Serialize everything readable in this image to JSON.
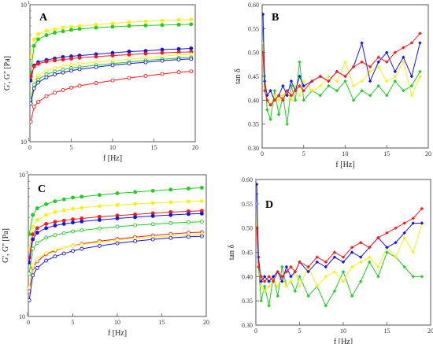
{
  "colors": {
    "red": "#ff1a1a",
    "blue": "#1414e6",
    "green": "#22cc22",
    "yellow": "#f2f21a",
    "frame": "#555555"
  },
  "chart_data": [
    {
      "panel": "A",
      "type": "scatter",
      "ylog": true,
      "xlabel": "f [Hz]",
      "ylabel": "G', G'' [Pa]",
      "xlim": [
        0,
        20
      ],
      "ylim": [
        100,
        1000
      ],
      "xticks": [
        0,
        5,
        10,
        15,
        20
      ],
      "yticks": [
        {
          "v": 100,
          "t": "10"
        },
        {
          "v": 1000,
          "t": "10"
        }
      ],
      "yexp": "1",
      "series": [
        {
          "color": "yellow",
          "filled": true,
          "x": [
            0.1,
            0.5,
            1,
            2,
            3,
            4,
            5,
            6,
            8,
            10,
            12,
            14,
            16,
            18,
            19.5
          ],
          "y": [
            420,
            560,
            610,
            645,
            660,
            680,
            690,
            700,
            715,
            730,
            745,
            755,
            765,
            775,
            780
          ]
        },
        {
          "color": "green",
          "filled": true,
          "x": [
            0.1,
            0.5,
            1,
            2,
            3,
            4,
            5,
            6,
            8,
            10,
            12,
            14,
            16,
            18,
            19.5
          ],
          "y": [
            320,
            500,
            560,
            600,
            625,
            640,
            655,
            665,
            680,
            690,
            700,
            705,
            710,
            715,
            720
          ]
        },
        {
          "color": "blue",
          "filled": true,
          "x": [
            0.1,
            0.5,
            1,
            2,
            3,
            4,
            5,
            6,
            8,
            10,
            12,
            14,
            16,
            18,
            19.5
          ],
          "y": [
            280,
            360,
            380,
            395,
            405,
            415,
            420,
            425,
            435,
            445,
            455,
            460,
            470,
            475,
            480
          ]
        },
        {
          "color": "red",
          "filled": true,
          "x": [
            0.1,
            0.5,
            1,
            2,
            3,
            4,
            5,
            6,
            8,
            10,
            12,
            14,
            16,
            18,
            19.5
          ],
          "y": [
            300,
            355,
            370,
            385,
            392,
            398,
            404,
            410,
            418,
            425,
            432,
            440,
            445,
            450,
            452
          ]
        },
        {
          "color": "yellow",
          "filled": false,
          "x": [
            0.1,
            0.5,
            1,
            2,
            3,
            4,
            5,
            6,
            8,
            10,
            12,
            14,
            16,
            18,
            19.5
          ],
          "y": [
            200,
            280,
            305,
            330,
            345,
            355,
            365,
            370,
            380,
            390,
            400,
            410,
            420,
            430,
            435
          ]
        },
        {
          "color": "green",
          "filled": false,
          "x": [
            0.1,
            0.5,
            1,
            2,
            3,
            4,
            5,
            6,
            8,
            10,
            12,
            14,
            16,
            18,
            19.5
          ],
          "y": [
            200,
            260,
            285,
            310,
            325,
            335,
            345,
            350,
            362,
            372,
            382,
            392,
            400,
            408,
            412
          ]
        },
        {
          "color": "blue",
          "filled": false,
          "x": [
            0.1,
            0.5,
            1,
            2,
            3,
            4,
            5,
            6,
            8,
            10,
            12,
            14,
            16,
            18,
            19.5
          ],
          "y": [
            190,
            245,
            270,
            295,
            310,
            320,
            330,
            338,
            350,
            362,
            372,
            380,
            390,
            398,
            402
          ]
        },
        {
          "color": "red",
          "filled": false,
          "x": [
            0.1,
            0.5,
            1,
            2,
            3,
            4,
            5,
            6,
            8,
            10,
            12,
            14,
            16,
            18,
            19.5
          ],
          "y": [
            140,
            180,
            195,
            215,
            228,
            238,
            248,
            256,
            268,
            280,
            292,
            302,
            312,
            322,
            326
          ]
        }
      ]
    },
    {
      "panel": "B",
      "type": "line",
      "xlabel": "f [Hz]",
      "ylabel": "tan δ",
      "xlim": [
        0,
        20
      ],
      "ylim": [
        0.3,
        0.6
      ],
      "xticks": [
        0,
        5,
        10,
        15,
        20
      ],
      "yticks": [
        0.3,
        0.35,
        0.4,
        0.45,
        0.5,
        0.55,
        0.6
      ],
      "series": [
        {
          "color": "green",
          "x": [
            0.1,
            0.3,
            0.6,
            1,
            1.5,
            2,
            2.5,
            3,
            3.5,
            4,
            4.5,
            5,
            6,
            7,
            8,
            9,
            10,
            11,
            12,
            13,
            14,
            15,
            16,
            17,
            18,
            19
          ],
          "y": [
            0.55,
            0.45,
            0.38,
            0.36,
            0.42,
            0.37,
            0.41,
            0.35,
            0.43,
            0.4,
            0.48,
            0.4,
            0.42,
            0.41,
            0.43,
            0.42,
            0.44,
            0.4,
            0.42,
            0.41,
            0.43,
            0.41,
            0.44,
            0.42,
            0.43,
            0.46
          ]
        },
        {
          "color": "yellow",
          "x": [
            0.1,
            0.3,
            0.6,
            1,
            1.5,
            2,
            2.5,
            3,
            3.5,
            4,
            4.5,
            5,
            6,
            7,
            8,
            9,
            10,
            11,
            12,
            13,
            14,
            15,
            16,
            17,
            18,
            19
          ],
          "y": [
            0.52,
            0.43,
            0.4,
            0.39,
            0.41,
            0.4,
            0.41,
            0.42,
            0.4,
            0.43,
            0.41,
            0.44,
            0.42,
            0.43,
            0.45,
            0.44,
            0.48,
            0.43,
            0.44,
            0.46,
            0.47,
            0.44,
            0.45,
            0.48,
            0.41,
            0.45
          ]
        },
        {
          "color": "blue",
          "x": [
            0.1,
            0.3,
            0.6,
            1,
            1.5,
            2,
            2.5,
            3,
            3.5,
            4,
            4.5,
            5,
            6,
            7,
            8,
            9,
            10,
            11,
            12,
            13,
            14,
            15,
            16,
            17,
            18,
            19
          ],
          "y": [
            0.58,
            0.44,
            0.41,
            0.42,
            0.4,
            0.41,
            0.43,
            0.41,
            0.44,
            0.42,
            0.45,
            0.43,
            0.44,
            0.45,
            0.44,
            0.46,
            0.45,
            0.47,
            0.52,
            0.44,
            0.48,
            0.5,
            0.46,
            0.49,
            0.45,
            0.52
          ]
        },
        {
          "color": "red",
          "x": [
            0.1,
            0.3,
            0.6,
            1,
            1.5,
            2,
            2.5,
            3,
            3.5,
            4,
            4.5,
            5,
            6,
            7,
            8,
            9,
            10,
            11,
            12,
            13,
            14,
            15,
            16,
            17,
            18,
            19
          ],
          "y": [
            0.5,
            0.42,
            0.4,
            0.39,
            0.4,
            0.41,
            0.4,
            0.42,
            0.41,
            0.42,
            0.43,
            0.42,
            0.44,
            0.45,
            0.44,
            0.46,
            0.45,
            0.47,
            0.48,
            0.47,
            0.49,
            0.48,
            0.5,
            0.51,
            0.52,
            0.54
          ]
        }
      ]
    },
    {
      "panel": "C",
      "type": "scatter",
      "ylog": true,
      "xlabel": "f [Hz]",
      "ylabel": "G', G'' [Pa]",
      "xlim": [
        0,
        20
      ],
      "ylim": [
        100,
        1000
      ],
      "xticks": [
        0,
        5,
        10,
        15,
        20
      ],
      "yticks": [
        {
          "v": 100,
          "t": "10"
        },
        {
          "v": 1000,
          "t": "10"
        }
      ],
      "yexp": "1",
      "series": [
        {
          "color": "green",
          "filled": true,
          "x": [
            0.1,
            0.5,
            1,
            2,
            3,
            4,
            5,
            6,
            8,
            10,
            12,
            14,
            16,
            18,
            19.5
          ],
          "y": [
            380,
            520,
            580,
            620,
            650,
            670,
            690,
            700,
            720,
            740,
            755,
            770,
            785,
            800,
            810
          ]
        },
        {
          "color": "yellow",
          "filled": true,
          "x": [
            0.1,
            0.5,
            1,
            2,
            3,
            4,
            5,
            6,
            8,
            10,
            12,
            14,
            16,
            18,
            19.5
          ],
          "y": [
            300,
            430,
            480,
            520,
            545,
            560,
            575,
            585,
            600,
            612,
            622,
            632,
            640,
            648,
            652
          ]
        },
        {
          "color": "red",
          "filled": true,
          "x": [
            0.1,
            0.5,
            1,
            2,
            3,
            4,
            5,
            6,
            8,
            10,
            12,
            14,
            16,
            18,
            19.5
          ],
          "y": [
            260,
            380,
            420,
            450,
            465,
            475,
            485,
            492,
            505,
            515,
            525,
            535,
            545,
            552,
            556
          ]
        },
        {
          "color": "blue",
          "filled": true,
          "x": [
            0.1,
            0.5,
            1,
            2,
            3,
            4,
            5,
            6,
            8,
            10,
            12,
            14,
            16,
            18,
            19.5
          ],
          "y": [
            240,
            350,
            390,
            420,
            438,
            450,
            460,
            468,
            480,
            492,
            502,
            512,
            520,
            528,
            532
          ]
        },
        {
          "color": "green",
          "filled": false,
          "x": [
            0.1,
            0.5,
            1,
            2,
            3,
            4,
            5,
            6,
            8,
            10,
            12,
            14,
            16,
            18,
            19.5
          ],
          "y": [
            200,
            300,
            330,
            360,
            375,
            387,
            398,
            405,
            418,
            430,
            440,
            448,
            456,
            462,
            466
          ]
        },
        {
          "color": "red",
          "filled": false,
          "x": [
            0.1,
            0.5,
            1,
            2,
            3,
            4,
            5,
            6,
            8,
            10,
            12,
            14,
            16,
            18,
            19.5
          ],
          "y": [
            150,
            220,
            245,
            275,
            292,
            305,
            316,
            325,
            340,
            352,
            363,
            373,
            382,
            390,
            393
          ]
        },
        {
          "color": "yellow",
          "filled": false,
          "x": [
            0.1,
            0.5,
            1,
            2,
            3,
            4,
            5,
            6,
            8,
            10,
            12,
            14,
            16,
            18,
            19.5
          ],
          "y": [
            160,
            230,
            255,
            280,
            295,
            305,
            315,
            322,
            335,
            346,
            355,
            363,
            370,
            377,
            380
          ]
        },
        {
          "color": "blue",
          "filled": false,
          "x": [
            0.1,
            0.5,
            1,
            2,
            3,
            4,
            5,
            6,
            8,
            10,
            12,
            14,
            16,
            18,
            19.5
          ],
          "y": [
            130,
            195,
            220,
            248,
            265,
            278,
            290,
            300,
            315,
            328,
            340,
            350,
            358,
            365,
            368
          ]
        }
      ]
    },
    {
      "panel": "D",
      "type": "line",
      "xlabel": "f [Hz]",
      "ylabel": "tan δ",
      "xlim": [
        0,
        20
      ],
      "ylim": [
        0.3,
        0.6
      ],
      "xticks": [
        0,
        5,
        10,
        15,
        20
      ],
      "yticks": [
        0.3,
        0.35,
        0.4,
        0.45,
        0.5,
        0.55,
        0.6
      ],
      "series": [
        {
          "color": "green",
          "x": [
            0.1,
            0.3,
            0.6,
            1,
            1.5,
            2,
            2.5,
            3,
            3.5,
            4,
            4.5,
            5,
            6,
            7,
            8,
            9,
            10,
            11,
            12,
            13,
            14,
            15,
            16,
            17,
            18,
            19
          ],
          "y": [
            0.57,
            0.42,
            0.35,
            0.38,
            0.34,
            0.4,
            0.36,
            0.42,
            0.38,
            0.39,
            0.37,
            0.4,
            0.36,
            0.38,
            0.34,
            0.37,
            0.41,
            0.36,
            0.39,
            0.43,
            0.4,
            0.45,
            0.44,
            0.42,
            0.4,
            0.4
          ]
        },
        {
          "color": "yellow",
          "x": [
            0.1,
            0.3,
            0.6,
            1,
            1.5,
            2,
            2.5,
            3,
            3.5,
            4,
            4.5,
            5,
            6,
            7,
            8,
            9,
            10,
            11,
            12,
            13,
            14,
            15,
            16,
            17,
            18,
            19
          ],
          "y": [
            0.55,
            0.43,
            0.38,
            0.37,
            0.38,
            0.39,
            0.38,
            0.4,
            0.38,
            0.39,
            0.41,
            0.38,
            0.42,
            0.38,
            0.4,
            0.41,
            0.39,
            0.42,
            0.43,
            0.44,
            0.42,
            0.46,
            0.44,
            0.48,
            0.45,
            0.51
          ]
        },
        {
          "color": "blue",
          "x": [
            0.1,
            0.3,
            0.6,
            1,
            1.5,
            2,
            2.5,
            3,
            3.5,
            4,
            4.5,
            5,
            6,
            7,
            8,
            9,
            10,
            11,
            12,
            13,
            14,
            15,
            16,
            17,
            18,
            19
          ],
          "y": [
            0.59,
            0.44,
            0.39,
            0.4,
            0.39,
            0.4,
            0.41,
            0.39,
            0.42,
            0.4,
            0.41,
            0.43,
            0.41,
            0.43,
            0.42,
            0.44,
            0.43,
            0.45,
            0.44,
            0.46,
            0.48,
            0.46,
            0.47,
            0.49,
            0.51,
            0.51
          ]
        },
        {
          "color": "red",
          "x": [
            0.1,
            0.3,
            0.6,
            1,
            1.5,
            2,
            2.5,
            3,
            3.5,
            4,
            4.5,
            5,
            6,
            7,
            8,
            9,
            10,
            11,
            12,
            13,
            14,
            15,
            16,
            17,
            18,
            19
          ],
          "y": [
            0.5,
            0.42,
            0.4,
            0.39,
            0.4,
            0.39,
            0.41,
            0.4,
            0.41,
            0.42,
            0.41,
            0.43,
            0.42,
            0.44,
            0.43,
            0.45,
            0.44,
            0.46,
            0.47,
            0.46,
            0.48,
            0.49,
            0.5,
            0.51,
            0.52,
            0.54
          ]
        }
      ]
    }
  ]
}
